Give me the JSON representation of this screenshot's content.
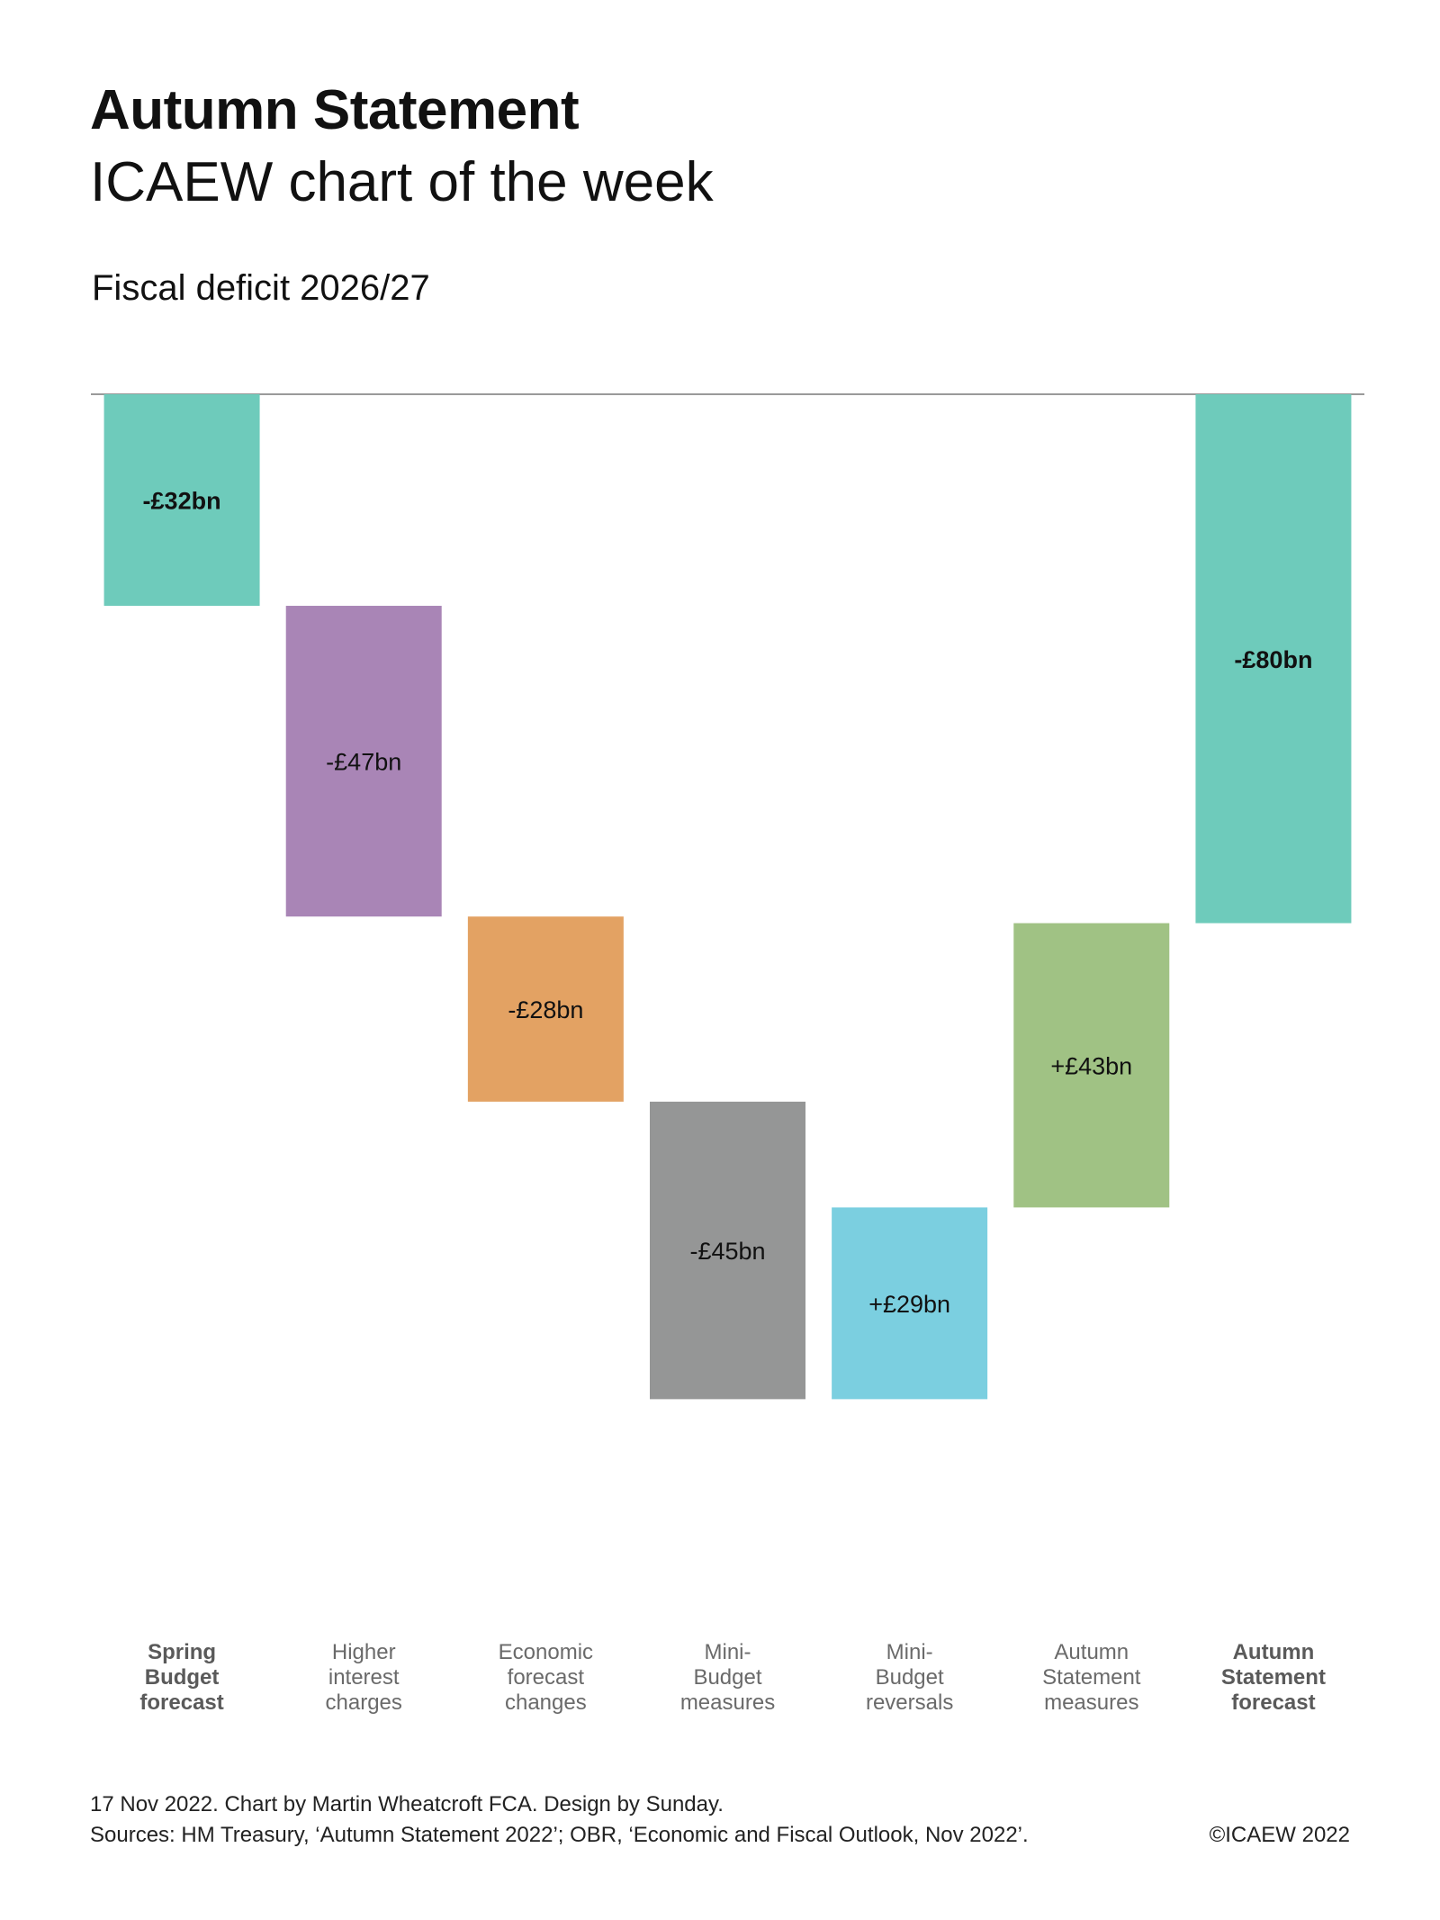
{
  "header": {
    "title": "Autumn Statement",
    "subtitle": "ICAEW chart of the week"
  },
  "chart_data": {
    "type": "waterfall",
    "title": "Fiscal deficit 2026/27",
    "xlabel": "",
    "ylabel": "",
    "unit": "£bn",
    "ylim": [
      -177,
      0
    ],
    "grid": false,
    "legend": "none",
    "categories": [
      [
        "Spring",
        "Budget",
        "forecast"
      ],
      [
        "Higher",
        "interest",
        "charges"
      ],
      [
        "Economic",
        "forecast",
        "changes"
      ],
      [
        "Mini-",
        "Budget",
        "measures"
      ],
      [
        "Mini-",
        "Budget",
        "reversals"
      ],
      [
        "Autumn",
        "Statement",
        "measures"
      ],
      [
        "Autumn",
        "Statement",
        "forecast"
      ]
    ],
    "bars": [
      {
        "kind": "total",
        "value": -32,
        "start": 0,
        "end": -32,
        "label": "-£32bn",
        "color": "#6ecbbb",
        "bold": true
      },
      {
        "kind": "change",
        "value": -47,
        "start": -32,
        "end": -79,
        "label": "-£47bn",
        "color": "#a985b6",
        "bold": false
      },
      {
        "kind": "change",
        "value": -28,
        "start": -79,
        "end": -107,
        "label": "-£28bn",
        "color": "#e3a263",
        "bold": false
      },
      {
        "kind": "change",
        "value": -45,
        "start": -107,
        "end": -152,
        "label": "-£45bn",
        "color": "#959696",
        "bold": false
      },
      {
        "kind": "change",
        "value": 29,
        "start": -152,
        "end": -123,
        "label": "+£29bn",
        "color": "#7bcfe0",
        "bold": false
      },
      {
        "kind": "change",
        "value": 43,
        "start": -123,
        "end": -80,
        "label": "+£43bn",
        "color": "#a0c284",
        "bold": false
      },
      {
        "kind": "total",
        "value": -80,
        "start": 0,
        "end": -80,
        "label": "-£80bn",
        "color": "#6ecbbb",
        "bold": true
      }
    ]
  },
  "footer": {
    "line1": "17 Nov 2022.   Chart by Martin Wheatcroft FCA. Design by Sunday.",
    "line2": "Sources: HM Treasury, ‘Autumn Statement 2022’; OBR, ‘Economic and Fiscal Outlook, Nov 2022’.",
    "copyright": "©ICAEW 2022"
  },
  "colors": {
    "baseline": "#9a9a9a",
    "category_label": "#6a6a6a",
    "category_label_bold": "#5a5a5a"
  }
}
